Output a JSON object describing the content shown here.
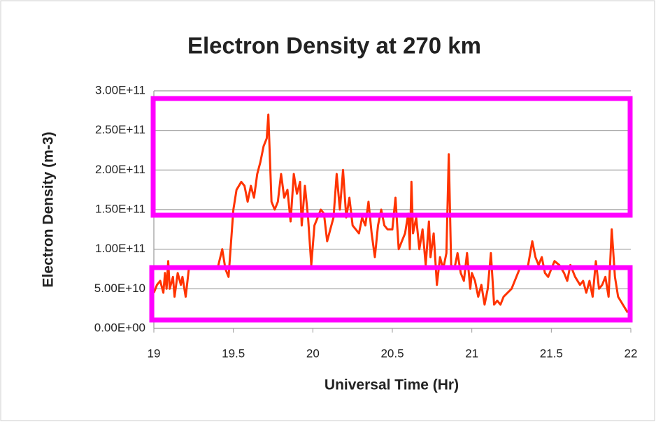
{
  "chart_data": {
    "type": "line",
    "title": "Electron Density at 270 km",
    "x_label": "Universal Time (Hr)",
    "y_label": "Electron Density (m-3)",
    "xlim": [
      19,
      22
    ],
    "xticks": [
      19,
      19.5,
      20,
      20.5,
      21,
      21.5,
      22
    ],
    "ylim": [
      0,
      300000000000.0
    ],
    "yticks": [
      {
        "value": 0,
        "label": "0.00E+00"
      },
      {
        "value": 50000000000.0,
        "label": "5.00E+10"
      },
      {
        "value": 100000000000.0,
        "label": "1.00E+11"
      },
      {
        "value": 150000000000.0,
        "label": "1.50E+11"
      },
      {
        "value": 200000000000.0,
        "label": "2.00E+11"
      },
      {
        "value": 250000000000.0,
        "label": "2.50E+11"
      },
      {
        "value": 300000000000.0,
        "label": "3.00E+11"
      }
    ],
    "grid": true,
    "series": [
      {
        "color": "#ff3300",
        "x": [
          19.0,
          19.02,
          19.04,
          19.06,
          19.07,
          19.08,
          19.09,
          19.1,
          19.12,
          19.13,
          19.15,
          19.17,
          19.18,
          19.2,
          19.22,
          19.3,
          19.4,
          19.43,
          19.45,
          19.47,
          19.5,
          19.52,
          19.55,
          19.57,
          19.59,
          19.61,
          19.63,
          19.65,
          19.67,
          19.69,
          19.71,
          19.72,
          19.74,
          19.76,
          19.78,
          19.8,
          19.82,
          19.84,
          19.86,
          19.88,
          19.9,
          19.92,
          19.93,
          19.95,
          19.97,
          19.99,
          20.01,
          20.03,
          20.05,
          20.07,
          20.09,
          20.11,
          20.13,
          20.15,
          20.17,
          20.19,
          20.21,
          20.23,
          20.25,
          20.27,
          20.29,
          20.31,
          20.33,
          20.35,
          20.37,
          20.39,
          20.41,
          20.43,
          20.45,
          20.47,
          20.5,
          20.52,
          20.54,
          20.56,
          20.58,
          20.6,
          20.61,
          20.62,
          20.63,
          20.65,
          20.67,
          20.69,
          20.71,
          20.73,
          20.74,
          20.76,
          20.78,
          20.8,
          20.82,
          20.84,
          20.855,
          20.87,
          20.89,
          20.91,
          20.93,
          20.95,
          20.97,
          20.99,
          21.0,
          21.02,
          21.04,
          21.06,
          21.08,
          21.1,
          21.12,
          21.14,
          21.16,
          21.18,
          21.2,
          21.25,
          21.3,
          21.35,
          21.38,
          21.4,
          21.42,
          21.44,
          21.46,
          21.48,
          21.5,
          21.52,
          21.55,
          21.58,
          21.6,
          21.62,
          21.65,
          21.68,
          21.7,
          21.72,
          21.74,
          21.76,
          21.78,
          21.8,
          21.82,
          21.84,
          21.86,
          21.88,
          21.9,
          21.92,
          21.95,
          21.98
        ],
        "values": [
          45000000000.0,
          55000000000.0,
          60000000000.0,
          45000000000.0,
          70000000000.0,
          50000000000.0,
          85000000000.0,
          50000000000.0,
          65000000000.0,
          40000000000.0,
          70000000000.0,
          55000000000.0,
          65000000000.0,
          40000000000.0,
          75000000000.0,
          75000000000.0,
          75000000000.0,
          100000000000.0,
          75000000000.0,
          65000000000.0,
          150000000000.0,
          175000000000.0,
          185000000000.0,
          180000000000.0,
          160000000000.0,
          180000000000.0,
          165000000000.0,
          195000000000.0,
          210000000000.0,
          230000000000.0,
          240000000000.0,
          270000000000.0,
          160000000000.0,
          150000000000.0,
          160000000000.0,
          195000000000.0,
          165000000000.0,
          175000000000.0,
          135000000000.0,
          195000000000.0,
          170000000000.0,
          185000000000.0,
          130000000000.0,
          180000000000.0,
          140000000000.0,
          80000000000.0,
          130000000000.0,
          140000000000.0,
          150000000000.0,
          145000000000.0,
          110000000000.0,
          125000000000.0,
          140000000000.0,
          195000000000.0,
          150000000000.0,
          200000000000.0,
          140000000000.0,
          165000000000.0,
          130000000000.0,
          125000000000.0,
          120000000000.0,
          140000000000.0,
          130000000000.0,
          160000000000.0,
          120000000000.0,
          90000000000.0,
          130000000000.0,
          150000000000.0,
          130000000000.0,
          125000000000.0,
          125000000000.0,
          165000000000.0,
          100000000000.0,
          110000000000.0,
          120000000000.0,
          145000000000.0,
          100000000000.0,
          185000000000.0,
          120000000000.0,
          140000000000.0,
          100000000000.0,
          125000000000.0,
          80000000000.0,
          135000000000.0,
          90000000000.0,
          120000000000.0,
          55000000000.0,
          90000000000.0,
          75000000000.0,
          95000000000.0,
          220000000000.0,
          80000000000.0,
          75000000000.0,
          95000000000.0,
          70000000000.0,
          60000000000.0,
          95000000000.0,
          50000000000.0,
          70000000000.0,
          60000000000.0,
          40000000000.0,
          55000000000.0,
          30000000000.0,
          50000000000.0,
          95000000000.0,
          30000000000.0,
          35000000000.0,
          30000000000.0,
          40000000000.0,
          50000000000.0,
          75000000000.0,
          75000000000.0,
          110000000000.0,
          90000000000.0,
          80000000000.0,
          90000000000.0,
          70000000000.0,
          65000000000.0,
          75000000000.0,
          85000000000.0,
          80000000000.0,
          70000000000.0,
          60000000000.0,
          80000000000.0,
          65000000000.0,
          55000000000.0,
          60000000000.0,
          45000000000.0,
          60000000000.0,
          40000000000.0,
          85000000000.0,
          50000000000.0,
          55000000000.0,
          65000000000.0,
          40000000000.0,
          125000000000.0,
          65000000000.0,
          40000000000.0,
          30000000000.0,
          20000000000.0
        ]
      }
    ]
  }
}
